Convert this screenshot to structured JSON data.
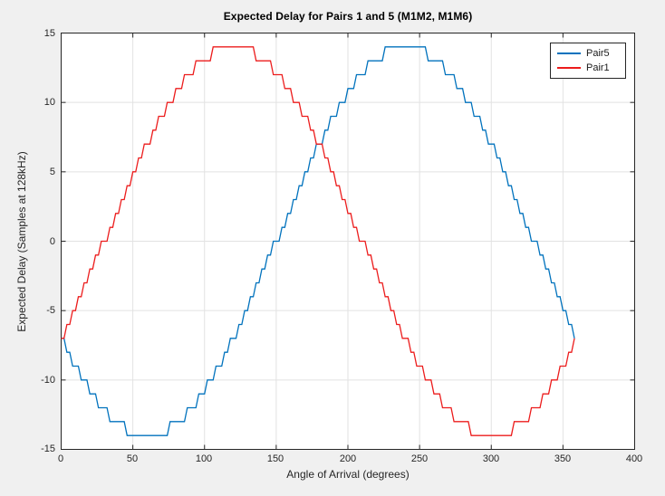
{
  "figure": {
    "background_color": "#f0f0f0",
    "axes_background_color": "#ffffff"
  },
  "chart_data": {
    "type": "line",
    "style": "stair-stepped quantized sine curves (integer sample delays)",
    "title": "Expected Delay for Pairs 1 and 5 (M1M2, M1M6)",
    "xlabel": "Angle of Arrival (degrees)",
    "ylabel": "Expected Delay (Samples at 128kHz)",
    "xlim": [
      0,
      400
    ],
    "ylim": [
      -15,
      15
    ],
    "x_ticks": [
      0,
      50,
      100,
      150,
      200,
      250,
      300,
      350,
      400
    ],
    "y_ticks": [
      -15,
      -10,
      -5,
      0,
      5,
      10,
      15
    ],
    "grid": true,
    "grid_color": "#e2e2e2",
    "axes_color": "#262626",
    "x_start_deg": 0,
    "x_step_deg": 2,
    "legend": {
      "position": "northeast",
      "entries": [
        {
          "label": "Pair5",
          "color": "#0072BD"
        },
        {
          "label": "Pair1",
          "color": "#ec1c1c"
        }
      ]
    },
    "series": [
      {
        "name": "Pair5",
        "color": "#0072BD",
        "values": [
          -7,
          -7,
          -8,
          -8,
          -9,
          -9,
          -9,
          -10,
          -10,
          -10,
          -11,
          -11,
          -11,
          -12,
          -12,
          -12,
          -12,
          -13,
          -13,
          -13,
          -13,
          -13,
          -13,
          -14,
          -14,
          -14,
          -14,
          -14,
          -14,
          -14,
          -14,
          -14,
          -14,
          -14,
          -14,
          -14,
          -14,
          -14,
          -13,
          -13,
          -13,
          -13,
          -13,
          -13,
          -12,
          -12,
          -12,
          -12,
          -11,
          -11,
          -11,
          -10,
          -10,
          -10,
          -9,
          -9,
          -9,
          -8,
          -8,
          -7,
          -7,
          -7,
          -6,
          -6,
          -5,
          -5,
          -4,
          -4,
          -3,
          -3,
          -2,
          -2,
          -1,
          -1,
          0,
          0,
          0,
          1,
          1,
          2,
          2,
          3,
          3,
          4,
          4,
          5,
          5,
          6,
          6,
          7,
          7,
          7,
          8,
          8,
          9,
          9,
          9,
          10,
          10,
          10,
          11,
          11,
          11,
          12,
          12,
          12,
          12,
          13,
          13,
          13,
          13,
          13,
          13,
          14,
          14,
          14,
          14,
          14,
          14,
          14,
          14,
          14,
          14,
          14,
          14,
          14,
          14,
          14,
          13,
          13,
          13,
          13,
          13,
          13,
          12,
          12,
          12,
          12,
          11,
          11,
          11,
          10,
          10,
          10,
          9,
          9,
          9,
          8,
          8,
          7,
          7,
          7,
          6,
          6,
          5,
          5,
          4,
          4,
          3,
          3,
          2,
          2,
          1,
          1,
          0,
          0,
          0,
          -1,
          -1,
          -2,
          -2,
          -3,
          -3,
          -4,
          -4,
          -5,
          -5,
          -6,
          -6,
          -7
        ]
      },
      {
        "name": "Pair1",
        "color": "#ec1c1c",
        "values": [
          -7,
          -7,
          -6,
          -6,
          -5,
          -5,
          -4,
          -4,
          -3,
          -3,
          -2,
          -2,
          -1,
          -1,
          0,
          0,
          0,
          1,
          1,
          2,
          2,
          3,
          3,
          4,
          4,
          5,
          5,
          6,
          6,
          7,
          7,
          7,
          8,
          8,
          9,
          9,
          9,
          10,
          10,
          10,
          11,
          11,
          11,
          12,
          12,
          12,
          12,
          13,
          13,
          13,
          13,
          13,
          13,
          14,
          14,
          14,
          14,
          14,
          14,
          14,
          14,
          14,
          14,
          14,
          14,
          14,
          14,
          14,
          13,
          13,
          13,
          13,
          13,
          13,
          12,
          12,
          12,
          12,
          11,
          11,
          11,
          10,
          10,
          10,
          9,
          9,
          9,
          8,
          8,
          7,
          7,
          7,
          6,
          6,
          5,
          5,
          4,
          4,
          3,
          3,
          2,
          2,
          1,
          1,
          0,
          0,
          0,
          -1,
          -1,
          -2,
          -2,
          -3,
          -3,
          -4,
          -4,
          -5,
          -5,
          -6,
          -6,
          -7,
          -7,
          -7,
          -8,
          -8,
          -9,
          -9,
          -9,
          -10,
          -10,
          -10,
          -11,
          -11,
          -11,
          -12,
          -12,
          -12,
          -12,
          -13,
          -13,
          -13,
          -13,
          -13,
          -13,
          -14,
          -14,
          -14,
          -14,
          -14,
          -14,
          -14,
          -14,
          -14,
          -14,
          -14,
          -14,
          -14,
          -14,
          -14,
          -13,
          -13,
          -13,
          -13,
          -13,
          -13,
          -12,
          -12,
          -12,
          -12,
          -11,
          -11,
          -11,
          -10,
          -10,
          -10,
          -9,
          -9,
          -9,
          -8,
          -8,
          -7
        ]
      }
    ]
  }
}
